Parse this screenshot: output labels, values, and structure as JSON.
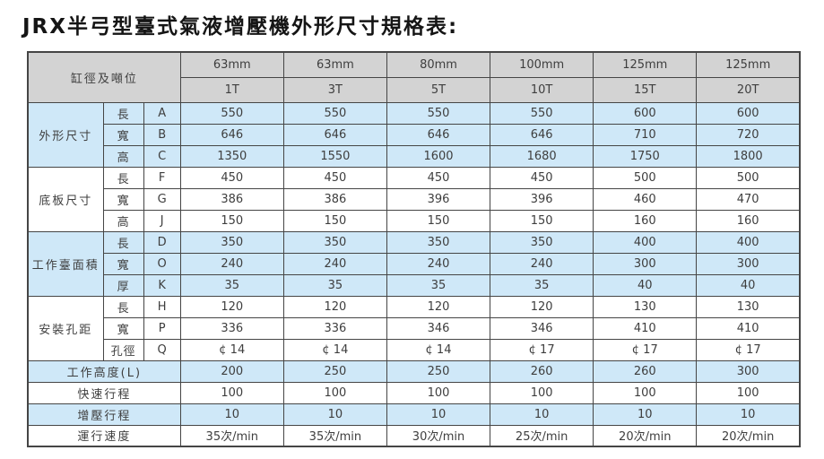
{
  "title": "JRX半弓型臺式氣液增壓機外形尺寸規格表:",
  "table": {
    "corner_label": "缸徑及噸位",
    "columns": [
      {
        "bore": "63mm",
        "tonnage": "1T"
      },
      {
        "bore": "63mm",
        "tonnage": "3T"
      },
      {
        "bore": "80mm",
        "tonnage": "5T"
      },
      {
        "bore": "100mm",
        "tonnage": "10T"
      },
      {
        "bore": "125mm",
        "tonnage": "15T"
      },
      {
        "bore": "125mm",
        "tonnage": "20T"
      }
    ],
    "groups": [
      {
        "name": "外形尺寸",
        "shade": true,
        "rows": [
          {
            "dim": "長",
            "code": "A",
            "values": [
              "550",
              "550",
              "550",
              "550",
              "600",
              "600"
            ]
          },
          {
            "dim": "寬",
            "code": "B",
            "values": [
              "646",
              "646",
              "646",
              "646",
              "710",
              "720"
            ]
          },
          {
            "dim": "高",
            "code": "C",
            "values": [
              "1350",
              "1550",
              "1600",
              "1680",
              "1750",
              "1800"
            ]
          }
        ]
      },
      {
        "name": "底板尺寸",
        "shade": false,
        "rows": [
          {
            "dim": "長",
            "code": "F",
            "values": [
              "450",
              "450",
              "450",
              "450",
              "500",
              "500"
            ]
          },
          {
            "dim": "寬",
            "code": "G",
            "values": [
              "386",
              "386",
              "396",
              "396",
              "460",
              "470"
            ]
          },
          {
            "dim": "高",
            "code": "J",
            "values": [
              "150",
              "150",
              "150",
              "150",
              "160",
              "160"
            ]
          }
        ]
      },
      {
        "name": "工作臺面積",
        "shade": true,
        "rows": [
          {
            "dim": "長",
            "code": "D",
            "values": [
              "350",
              "350",
              "350",
              "350",
              "400",
              "400"
            ]
          },
          {
            "dim": "寬",
            "code": "O",
            "values": [
              "240",
              "240",
              "240",
              "240",
              "300",
              "300"
            ]
          },
          {
            "dim": "厚",
            "code": "K",
            "values": [
              "35",
              "35",
              "35",
              "35",
              "40",
              "40"
            ]
          }
        ]
      },
      {
        "name": "安裝孔距",
        "shade": false,
        "rows": [
          {
            "dim": "長",
            "code": "H",
            "values": [
              "120",
              "120",
              "120",
              "120",
              "130",
              "130"
            ]
          },
          {
            "dim": "寬",
            "code": "P",
            "values": [
              "336",
              "336",
              "346",
              "346",
              "410",
              "410"
            ]
          },
          {
            "dim": "孔徑",
            "code": "Q",
            "values": [
              "¢ 14",
              "¢ 14",
              "¢ 14",
              "¢ 17",
              "¢ 17",
              "¢ 17"
            ]
          }
        ]
      }
    ],
    "footer_rows": [
      {
        "label": "工作高度(L)",
        "shade": true,
        "values": [
          "200",
          "250",
          "250",
          "260",
          "260",
          "300"
        ]
      },
      {
        "label": "快速行程",
        "shade": false,
        "values": [
          "100",
          "100",
          "100",
          "100",
          "100",
          "100"
        ]
      },
      {
        "label": "增壓行程",
        "shade": true,
        "values": [
          "10",
          "10",
          "10",
          "10",
          "10",
          "10"
        ]
      },
      {
        "label": "運行速度",
        "shade": false,
        "values": [
          "35次/min",
          "35次/min",
          "30次/min",
          "25次/min",
          "20次/min",
          "20次/min"
        ]
      }
    ],
    "colors": {
      "shade_blue": "#cfe8f8",
      "header_gray": "#d3d3d3",
      "border": "#454545",
      "text": "#3e3e3e"
    }
  }
}
